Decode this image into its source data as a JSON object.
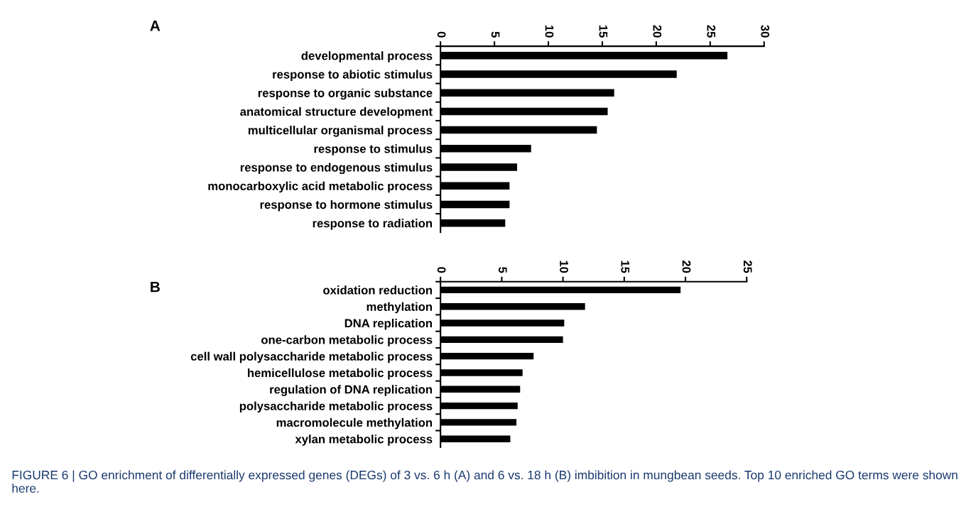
{
  "chart_data": [
    {
      "type": "bar",
      "orientation": "horizontal",
      "title": "A",
      "categories": [
        "developmental process",
        "response to abiotic stimulus",
        "response to organic substance",
        "anatomical structure development",
        "multicellular organismal process",
        "response to stimulus",
        "response to endogenous stimulus",
        "monocarboxylic acid metabolic process",
        "response to hormone stimulus",
        "response to radiation"
      ],
      "values": [
        26.6,
        21.9,
        16.1,
        15.5,
        14.5,
        8.4,
        7.1,
        6.4,
        6.4,
        6.0
      ],
      "color": "#000000",
      "xlim": [
        0,
        30
      ],
      "xticks": [
        0,
        5,
        10,
        15,
        20,
        25,
        30
      ],
      "grid": false
    },
    {
      "type": "bar",
      "orientation": "horizontal",
      "title": "B",
      "categories": [
        "oxidation reduction",
        "methylation",
        "DNA replication",
        "one-carbon metabolic process",
        "cell wall polysaccharide metabolic process",
        "hemicellulose metabolic process",
        "regulation of DNA replication",
        "polysaccharide metabolic process",
        "macromolecule methylation",
        "xylan metabolic process"
      ],
      "values": [
        19.6,
        11.8,
        10.1,
        10.0,
        7.6,
        6.7,
        6.5,
        6.3,
        6.2,
        5.7
      ],
      "color": "#000000",
      "xlim": [
        0,
        25
      ],
      "xticks": [
        0,
        5,
        10,
        15,
        20,
        25
      ],
      "grid": false,
      "annotations": [
        "FIGURE 6 | GO enrichment of differentially expressed genes (DEGs) of 3 vs. 6 h (A) and 6 vs. 18 h (B) imbibition in mungbean seeds. Top 10 enriched GO terms were shown here."
      ]
    }
  ]
}
